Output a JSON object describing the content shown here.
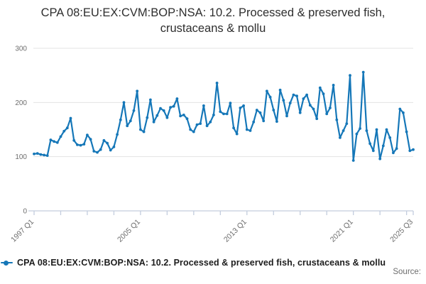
{
  "legend": {
    "label": "CPA 08:EU:EX:CVM:BOP:NSA: 10.2. Processed & preserved fish, crustaceans & mollu"
  },
  "footer": {
    "source_label": "Source:"
  },
  "chart_data": {
    "type": "line",
    "title": "CPA 08:EU:EX:CVM:BOP:NSA: 10.2. Processed & preserved fish, crustaceans & mollu",
    "xlabel": "",
    "ylabel": "",
    "ylim": [
      0,
      300
    ],
    "y_ticks": [
      0,
      100,
      200,
      300
    ],
    "grid": true,
    "legend_position": "bottom-left",
    "series_name": "CPA 08:EU:EX:CVM:BOP:NSA: 10.2. Processed & preserved fish, crustaceans & mollu",
    "x_tick_labels": [
      {
        "index": 0,
        "label": "1997 Q1"
      },
      {
        "index": 32,
        "label": "2005 Q1"
      },
      {
        "index": 64,
        "label": "2013 Q1"
      },
      {
        "index": 96,
        "label": "2021 Q1"
      },
      {
        "index": 114,
        "label": "2025 Q3"
      }
    ],
    "minor_tick_step_quarters": 8,
    "categories": [
      "1997 Q1",
      "1997 Q2",
      "1997 Q3",
      "1997 Q4",
      "1998 Q1",
      "1998 Q2",
      "1998 Q3",
      "1998 Q4",
      "1999 Q1",
      "1999 Q2",
      "1999 Q3",
      "1999 Q4",
      "2000 Q1",
      "2000 Q2",
      "2000 Q3",
      "2000 Q4",
      "2001 Q1",
      "2001 Q2",
      "2001 Q3",
      "2001 Q4",
      "2002 Q1",
      "2002 Q2",
      "2002 Q3",
      "2002 Q4",
      "2003 Q1",
      "2003 Q2",
      "2003 Q3",
      "2003 Q4",
      "2004 Q1",
      "2004 Q2",
      "2004 Q3",
      "2004 Q4",
      "2005 Q1",
      "2005 Q2",
      "2005 Q3",
      "2005 Q4",
      "2006 Q1",
      "2006 Q2",
      "2006 Q3",
      "2006 Q4",
      "2007 Q1",
      "2007 Q2",
      "2007 Q3",
      "2007 Q4",
      "2008 Q1",
      "2008 Q2",
      "2008 Q3",
      "2008 Q4",
      "2009 Q1",
      "2009 Q2",
      "2009 Q3",
      "2009 Q4",
      "2010 Q1",
      "2010 Q2",
      "2010 Q3",
      "2010 Q4",
      "2011 Q1",
      "2011 Q2",
      "2011 Q3",
      "2011 Q4",
      "2012 Q1",
      "2012 Q2",
      "2012 Q3",
      "2012 Q4",
      "2013 Q1",
      "2013 Q2",
      "2013 Q3",
      "2013 Q4",
      "2014 Q1",
      "2014 Q2",
      "2014 Q3",
      "2014 Q4",
      "2015 Q1",
      "2015 Q2",
      "2015 Q3",
      "2015 Q4",
      "2016 Q1",
      "2016 Q2",
      "2016 Q3",
      "2016 Q4",
      "2017 Q1",
      "2017 Q2",
      "2017 Q3",
      "2017 Q4",
      "2018 Q1",
      "2018 Q2",
      "2018 Q3",
      "2018 Q4",
      "2019 Q1",
      "2019 Q2",
      "2019 Q3",
      "2019 Q4",
      "2020 Q1",
      "2020 Q2",
      "2020 Q3",
      "2020 Q4",
      "2021 Q1",
      "2021 Q2",
      "2021 Q3",
      "2021 Q4",
      "2022 Q1",
      "2022 Q2",
      "2022 Q3",
      "2022 Q4",
      "2023 Q1",
      "2023 Q2",
      "2023 Q3",
      "2023 Q4",
      "2024 Q1",
      "2024 Q2",
      "2024 Q3",
      "2024 Q4",
      "2025 Q1",
      "2025 Q2",
      "2025 Q3"
    ],
    "values": [
      105,
      106,
      104,
      103,
      102,
      131,
      128,
      126,
      137,
      147,
      153,
      171,
      130,
      122,
      121,
      123,
      140,
      132,
      110,
      108,
      113,
      130,
      125,
      112,
      118,
      141,
      168,
      200,
      157,
      166,
      185,
      221,
      150,
      146,
      172,
      205,
      164,
      176,
      189,
      185,
      172,
      191,
      193,
      207,
      175,
      177,
      170,
      150,
      146,
      159,
      161,
      194,
      157,
      164,
      177,
      236,
      183,
      179,
      179,
      199,
      153,
      142,
      190,
      194,
      150,
      148,
      164,
      186,
      181,
      166,
      221,
      210,
      186,
      165,
      223,
      204,
      175,
      199,
      214,
      212,
      181,
      207,
      214,
      195,
      188,
      170,
      227,
      216,
      179,
      190,
      232,
      168,
      135,
      148,
      161,
      250,
      93,
      142,
      152,
      256,
      148,
      124,
      111,
      150,
      96,
      120,
      150,
      135,
      107,
      115,
      188,
      181,
      146,
      111,
      113
    ],
    "colors": {
      "line": "#1577b8",
      "grid": "#e3e3e3",
      "axis": "#c3cdde",
      "axis_text": "#6e6e6e",
      "title_text": "#2e2e2e",
      "legend_text": "#1c1c1c",
      "source_text": "#6e6e6e"
    }
  }
}
